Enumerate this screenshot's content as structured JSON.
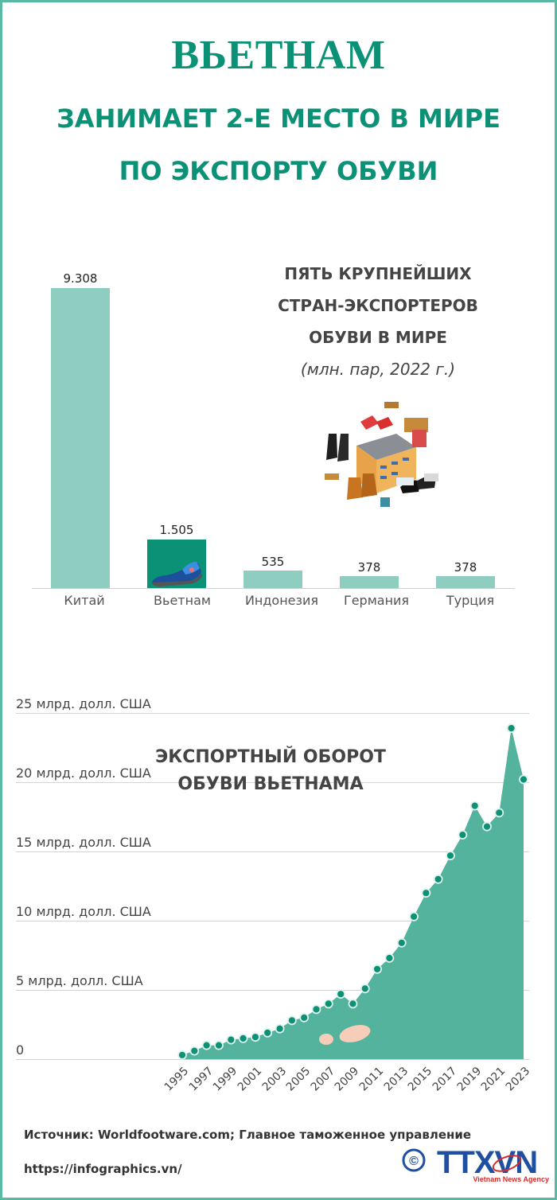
{
  "header": {
    "title": "ВЬЕТНАМ",
    "subtitle_line1": "ЗАНИМАЕТ 2-Е МЕСТО В МИРЕ",
    "subtitle_line2": "ПО ЭКСПОРТУ ОБУВИ"
  },
  "colors": {
    "accent": "#0b9175",
    "bar": "#8fcdc1",
    "area": "#53b39d",
    "border": "#5bb8a5",
    "text": "#444444"
  },
  "bar_section": {
    "title_line1": "ПЯТЬ КРУПНЕЙШИХ",
    "title_line2": "СТРАН-ЭКСПОРТЕРОВ",
    "title_line3": "ОБУВИ В МИРЕ",
    "unit": "(млн. пар, 2022 г.)",
    "bars": [
      {
        "label": "Китай",
        "value_label": "9.308"
      },
      {
        "label": "Вьетнам",
        "value_label": "1.505"
      },
      {
        "label": "Индонезия",
        "value_label": "535"
      },
      {
        "label": "Германия",
        "value_label": "378"
      },
      {
        "label": "Турция",
        "value_label": "378"
      }
    ],
    "illustration": "shoe-factory-illustration"
  },
  "area_section": {
    "title_line1": "ЭКСПОРТНЫЙ ОБОРОТ",
    "title_line2": "ОБУВИ ВЬЕТНАМА",
    "yticks": [
      "25 млрд. долл. США",
      "20 млрд. долл. США",
      "15 млрд. долл. США",
      "10 млрд. долл. США",
      "5 млрд. долл. США",
      "0"
    ],
    "xticks": [
      "1995",
      "1997",
      "1999",
      "2001",
      "2003",
      "2005",
      "2007",
      "2009",
      "2011",
      "2013",
      "2015",
      "2017",
      "2019",
      "2021",
      "2023"
    ]
  },
  "footer": {
    "source": "Источник: Worldfootware.com; Главное таможенное управление",
    "url": "https://infographics.vn/",
    "logo_copyright": "©",
    "logo_text": "TTXVN",
    "logo_tagline": "Vietnam News Agency"
  },
  "chart_data": [
    {
      "type": "bar",
      "title": "ПЯТЬ КРУПНЕЙШИХ СТРАН-ЭКСПОРТЕРОВ ОБУВИ В МИРЕ (млн. пар, 2022 г.)",
      "categories": [
        "Китай",
        "Вьетнам",
        "Индонезия",
        "Германия",
        "Турция"
      ],
      "values": [
        9308,
        1505,
        535,
        378,
        378
      ],
      "xlabel": "",
      "ylabel": "млн. пар",
      "grid": false,
      "legend": "none"
    },
    {
      "type": "area",
      "title": "ЭКСПОРТНЫЙ ОБОРОТ ОБУВИ ВЬЕТНАМА",
      "x": [
        1995,
        1996,
        1997,
        1998,
        1999,
        2000,
        2001,
        2002,
        2003,
        2004,
        2005,
        2006,
        2007,
        2008,
        2009,
        2010,
        2011,
        2012,
        2013,
        2014,
        2015,
        2016,
        2017,
        2018,
        2019,
        2020,
        2021,
        2022,
        2023
      ],
      "values": [
        0.3,
        0.6,
        1.0,
        1.0,
        1.4,
        1.5,
        1.6,
        1.9,
        2.2,
        2.8,
        3.0,
        3.6,
        4.0,
        4.7,
        4.0,
        5.1,
        6.5,
        7.3,
        8.4,
        10.3,
        12.0,
        13.0,
        14.7,
        16.2,
        18.3,
        16.8,
        17.8,
        23.9,
        20.2
      ],
      "xlabel": "",
      "ylabel": "млрд. долл. США",
      "ylim": [
        0,
        25
      ],
      "yticks": [
        0,
        5,
        10,
        15,
        20,
        25
      ],
      "grid": true,
      "legend": "none"
    }
  ]
}
